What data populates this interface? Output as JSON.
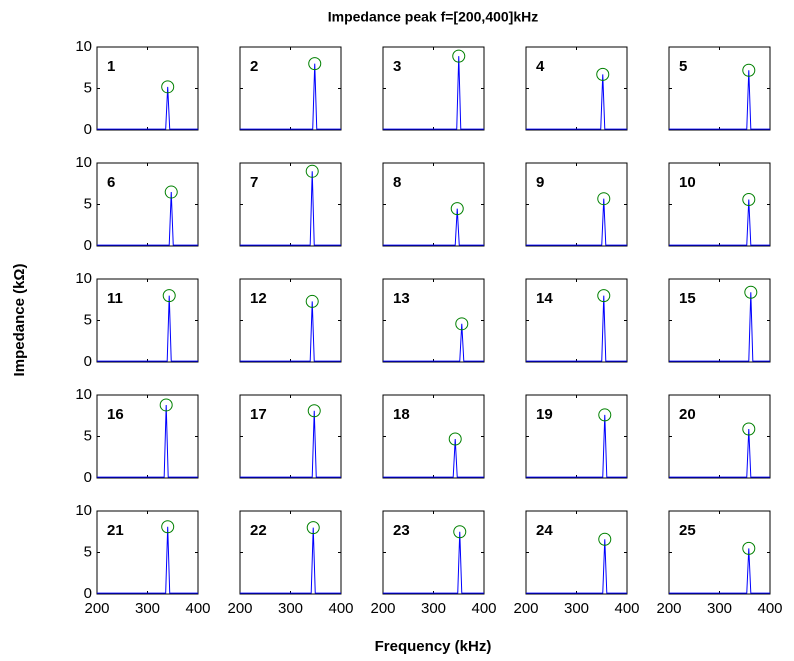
{
  "title": "Impedance peak f=[200,400]kHz",
  "x_label": "Frequency (kHz)",
  "y_label": "Impedance (kΩ)",
  "chart_data": [
    {
      "type": "line",
      "label": "1",
      "xlim": [
        200,
        400
      ],
      "ylim": [
        0,
        10
      ],
      "xticks": [
        200,
        300,
        400
      ],
      "yticks": [
        0,
        5,
        10
      ],
      "color": "#0000ff",
      "marker_color": "#008000",
      "x": [
        200,
        336,
        340,
        344,
        400
      ],
      "values": [
        0.1,
        0.1,
        5.2,
        0.1,
        0.1
      ]
    },
    {
      "type": "line",
      "label": "2",
      "xlim": [
        200,
        400
      ],
      "ylim": [
        0,
        10
      ],
      "xticks": [
        200,
        300,
        400
      ],
      "yticks": [
        0,
        5,
        10
      ],
      "color": "#0000ff",
      "marker_color": "#008000",
      "x": [
        200,
        344,
        348,
        352,
        400
      ],
      "values": [
        0.1,
        0.1,
        8.0,
        0.1,
        0.1
      ]
    },
    {
      "type": "line",
      "label": "3",
      "xlim": [
        200,
        400
      ],
      "ylim": [
        0,
        10
      ],
      "xticks": [
        200,
        300,
        400
      ],
      "yticks": [
        0,
        5,
        10
      ],
      "color": "#0000ff",
      "marker_color": "#008000",
      "x": [
        200,
        346,
        350,
        354,
        400
      ],
      "values": [
        0.1,
        0.1,
        8.9,
        0.1,
        0.1
      ]
    },
    {
      "type": "line",
      "label": "4",
      "xlim": [
        200,
        400
      ],
      "ylim": [
        0,
        10
      ],
      "xticks": [
        200,
        300,
        400
      ],
      "yticks": [
        0,
        5,
        10
      ],
      "color": "#0000ff",
      "marker_color": "#008000",
      "x": [
        200,
        348,
        352,
        356,
        400
      ],
      "values": [
        0.1,
        0.1,
        6.7,
        0.1,
        0.1
      ]
    },
    {
      "type": "line",
      "label": "5",
      "xlim": [
        200,
        400
      ],
      "ylim": [
        0,
        10
      ],
      "xticks": [
        200,
        300,
        400
      ],
      "yticks": [
        0,
        5,
        10
      ],
      "color": "#0000ff",
      "marker_color": "#008000",
      "x": [
        200,
        354,
        358,
        362,
        400
      ],
      "values": [
        0.1,
        0.1,
        7.2,
        0.1,
        0.1
      ]
    },
    {
      "type": "line",
      "label": "6",
      "xlim": [
        200,
        400
      ],
      "ylim": [
        0,
        10
      ],
      "xticks": [
        200,
        300,
        400
      ],
      "yticks": [
        0,
        5,
        10
      ],
      "color": "#0000ff",
      "marker_color": "#008000",
      "x": [
        200,
        343,
        347,
        351,
        400
      ],
      "values": [
        0.1,
        0.1,
        6.5,
        0.1,
        0.1
      ]
    },
    {
      "type": "line",
      "label": "7",
      "xlim": [
        200,
        400
      ],
      "ylim": [
        0,
        10
      ],
      "xticks": [
        200,
        300,
        400
      ],
      "yticks": [
        0,
        5,
        10
      ],
      "color": "#0000ff",
      "marker_color": "#008000",
      "x": [
        200,
        339,
        343,
        347,
        400
      ],
      "values": [
        0.1,
        0.1,
        9.0,
        0.1,
        0.1
      ]
    },
    {
      "type": "line",
      "label": "8",
      "xlim": [
        200,
        400
      ],
      "ylim": [
        0,
        10
      ],
      "xticks": [
        200,
        300,
        400
      ],
      "yticks": [
        0,
        5,
        10
      ],
      "color": "#0000ff",
      "marker_color": "#008000",
      "x": [
        200,
        343,
        347,
        351,
        400
      ],
      "values": [
        0.1,
        0.1,
        4.5,
        0.1,
        0.1
      ]
    },
    {
      "type": "line",
      "label": "9",
      "xlim": [
        200,
        400
      ],
      "ylim": [
        0,
        10
      ],
      "xticks": [
        200,
        300,
        400
      ],
      "yticks": [
        0,
        5,
        10
      ],
      "color": "#0000ff",
      "marker_color": "#008000",
      "x": [
        200,
        350,
        354,
        358,
        400
      ],
      "values": [
        0.1,
        0.1,
        5.7,
        0.1,
        0.1
      ]
    },
    {
      "type": "line",
      "label": "10",
      "xlim": [
        200,
        400
      ],
      "ylim": [
        0,
        10
      ],
      "xticks": [
        200,
        300,
        400
      ],
      "yticks": [
        0,
        5,
        10
      ],
      "color": "#0000ff",
      "marker_color": "#008000",
      "x": [
        200,
        354,
        358,
        362,
        400
      ],
      "values": [
        0.1,
        0.1,
        5.6,
        0.1,
        0.1
      ]
    },
    {
      "type": "line",
      "label": "11",
      "xlim": [
        200,
        400
      ],
      "ylim": [
        0,
        10
      ],
      "xticks": [
        200,
        300,
        400
      ],
      "yticks": [
        0,
        5,
        10
      ],
      "color": "#0000ff",
      "marker_color": "#008000",
      "x": [
        200,
        339,
        343,
        347,
        400
      ],
      "values": [
        0.1,
        0.1,
        8.0,
        0.1,
        0.1
      ]
    },
    {
      "type": "line",
      "label": "12",
      "xlim": [
        200,
        400
      ],
      "ylim": [
        0,
        10
      ],
      "xticks": [
        200,
        300,
        400
      ],
      "yticks": [
        0,
        5,
        10
      ],
      "color": "#0000ff",
      "marker_color": "#008000",
      "x": [
        200,
        339,
        343,
        347,
        400
      ],
      "values": [
        0.1,
        0.1,
        7.3,
        0.1,
        0.1
      ]
    },
    {
      "type": "line",
      "label": "13",
      "xlim": [
        200,
        400
      ],
      "ylim": [
        0,
        10
      ],
      "xticks": [
        200,
        300,
        400
      ],
      "yticks": [
        0,
        5,
        10
      ],
      "color": "#0000ff",
      "marker_color": "#008000",
      "x": [
        200,
        352,
        356,
        360,
        400
      ],
      "values": [
        0.1,
        0.1,
        4.6,
        0.1,
        0.1
      ]
    },
    {
      "type": "line",
      "label": "14",
      "xlim": [
        200,
        400
      ],
      "ylim": [
        0,
        10
      ],
      "xticks": [
        200,
        300,
        400
      ],
      "yticks": [
        0,
        5,
        10
      ],
      "color": "#0000ff",
      "marker_color": "#008000",
      "x": [
        200,
        350,
        354,
        358,
        400
      ],
      "values": [
        0.1,
        0.1,
        8.0,
        0.1,
        0.1
      ]
    },
    {
      "type": "line",
      "label": "15",
      "xlim": [
        200,
        400
      ],
      "ylim": [
        0,
        10
      ],
      "xticks": [
        200,
        300,
        400
      ],
      "yticks": [
        0,
        5,
        10
      ],
      "color": "#0000ff",
      "marker_color": "#008000",
      "x": [
        200,
        358,
        362,
        366,
        400
      ],
      "values": [
        0.1,
        0.1,
        8.4,
        0.1,
        0.1
      ]
    },
    {
      "type": "line",
      "label": "16",
      "xlim": [
        200,
        400
      ],
      "ylim": [
        0,
        10
      ],
      "xticks": [
        200,
        300,
        400
      ],
      "yticks": [
        0,
        5,
        10
      ],
      "color": "#0000ff",
      "marker_color": "#008000",
      "x": [
        200,
        333,
        337,
        341,
        400
      ],
      "values": [
        0.1,
        0.1,
        8.8,
        0.1,
        0.1
      ]
    },
    {
      "type": "line",
      "label": "17",
      "xlim": [
        200,
        400
      ],
      "ylim": [
        0,
        10
      ],
      "xticks": [
        200,
        300,
        400
      ],
      "yticks": [
        0,
        5,
        10
      ],
      "color": "#0000ff",
      "marker_color": "#008000",
      "x": [
        200,
        343,
        347,
        351,
        400
      ],
      "values": [
        0.1,
        0.1,
        8.1,
        0.1,
        0.1
      ]
    },
    {
      "type": "line",
      "label": "18",
      "xlim": [
        200,
        400
      ],
      "ylim": [
        0,
        10
      ],
      "xticks": [
        200,
        300,
        400
      ],
      "yticks": [
        0,
        5,
        10
      ],
      "color": "#0000ff",
      "marker_color": "#008000",
      "x": [
        200,
        339,
        343,
        347,
        400
      ],
      "values": [
        0.1,
        0.1,
        4.7,
        0.1,
        0.1
      ]
    },
    {
      "type": "line",
      "label": "19",
      "xlim": [
        200,
        400
      ],
      "ylim": [
        0,
        10
      ],
      "xticks": [
        200,
        300,
        400
      ],
      "yticks": [
        0,
        5,
        10
      ],
      "color": "#0000ff",
      "marker_color": "#008000",
      "x": [
        200,
        352,
        356,
        360,
        400
      ],
      "values": [
        0.1,
        0.1,
        7.6,
        0.1,
        0.1
      ]
    },
    {
      "type": "line",
      "label": "20",
      "xlim": [
        200,
        400
      ],
      "ylim": [
        0,
        10
      ],
      "xticks": [
        200,
        300,
        400
      ],
      "yticks": [
        0,
        5,
        10
      ],
      "color": "#0000ff",
      "marker_color": "#008000",
      "x": [
        200,
        354,
        358,
        362,
        400
      ],
      "values": [
        0.1,
        0.1,
        5.9,
        0.1,
        0.1
      ]
    },
    {
      "type": "line",
      "label": "21",
      "xlim": [
        200,
        400
      ],
      "ylim": [
        0,
        10
      ],
      "xticks": [
        200,
        300,
        400
      ],
      "yticks": [
        0,
        5,
        10
      ],
      "color": "#0000ff",
      "marker_color": "#008000",
      "x": [
        200,
        336,
        340,
        344,
        400
      ],
      "values": [
        0.1,
        0.1,
        8.1,
        0.1,
        0.1
      ]
    },
    {
      "type": "line",
      "label": "22",
      "xlim": [
        200,
        400
      ],
      "ylim": [
        0,
        10
      ],
      "xticks": [
        200,
        300,
        400
      ],
      "yticks": [
        0,
        5,
        10
      ],
      "color": "#0000ff",
      "marker_color": "#008000",
      "x": [
        200,
        341,
        345,
        349,
        400
      ],
      "values": [
        0.1,
        0.1,
        8.0,
        0.1,
        0.1
      ]
    },
    {
      "type": "line",
      "label": "23",
      "xlim": [
        200,
        400
      ],
      "ylim": [
        0,
        10
      ],
      "xticks": [
        200,
        300,
        400
      ],
      "yticks": [
        0,
        5,
        10
      ],
      "color": "#0000ff",
      "marker_color": "#008000",
      "x": [
        200,
        348,
        352,
        356,
        400
      ],
      "values": [
        0.1,
        0.1,
        7.5,
        0.1,
        0.1
      ]
    },
    {
      "type": "line",
      "label": "24",
      "xlim": [
        200,
        400
      ],
      "ylim": [
        0,
        10
      ],
      "xticks": [
        200,
        300,
        400
      ],
      "yticks": [
        0,
        5,
        10
      ],
      "color": "#0000ff",
      "marker_color": "#008000",
      "x": [
        200,
        352,
        356,
        360,
        400
      ],
      "values": [
        0.1,
        0.1,
        6.6,
        0.1,
        0.1
      ]
    },
    {
      "type": "line",
      "label": "25",
      "xlim": [
        200,
        400
      ],
      "ylim": [
        0,
        10
      ],
      "xticks": [
        200,
        300,
        400
      ],
      "yticks": [
        0,
        5,
        10
      ],
      "color": "#0000ff",
      "marker_color": "#008000",
      "x": [
        200,
        354,
        358,
        362,
        400
      ],
      "values": [
        0.1,
        0.1,
        5.5,
        0.1,
        0.1
      ]
    }
  ]
}
